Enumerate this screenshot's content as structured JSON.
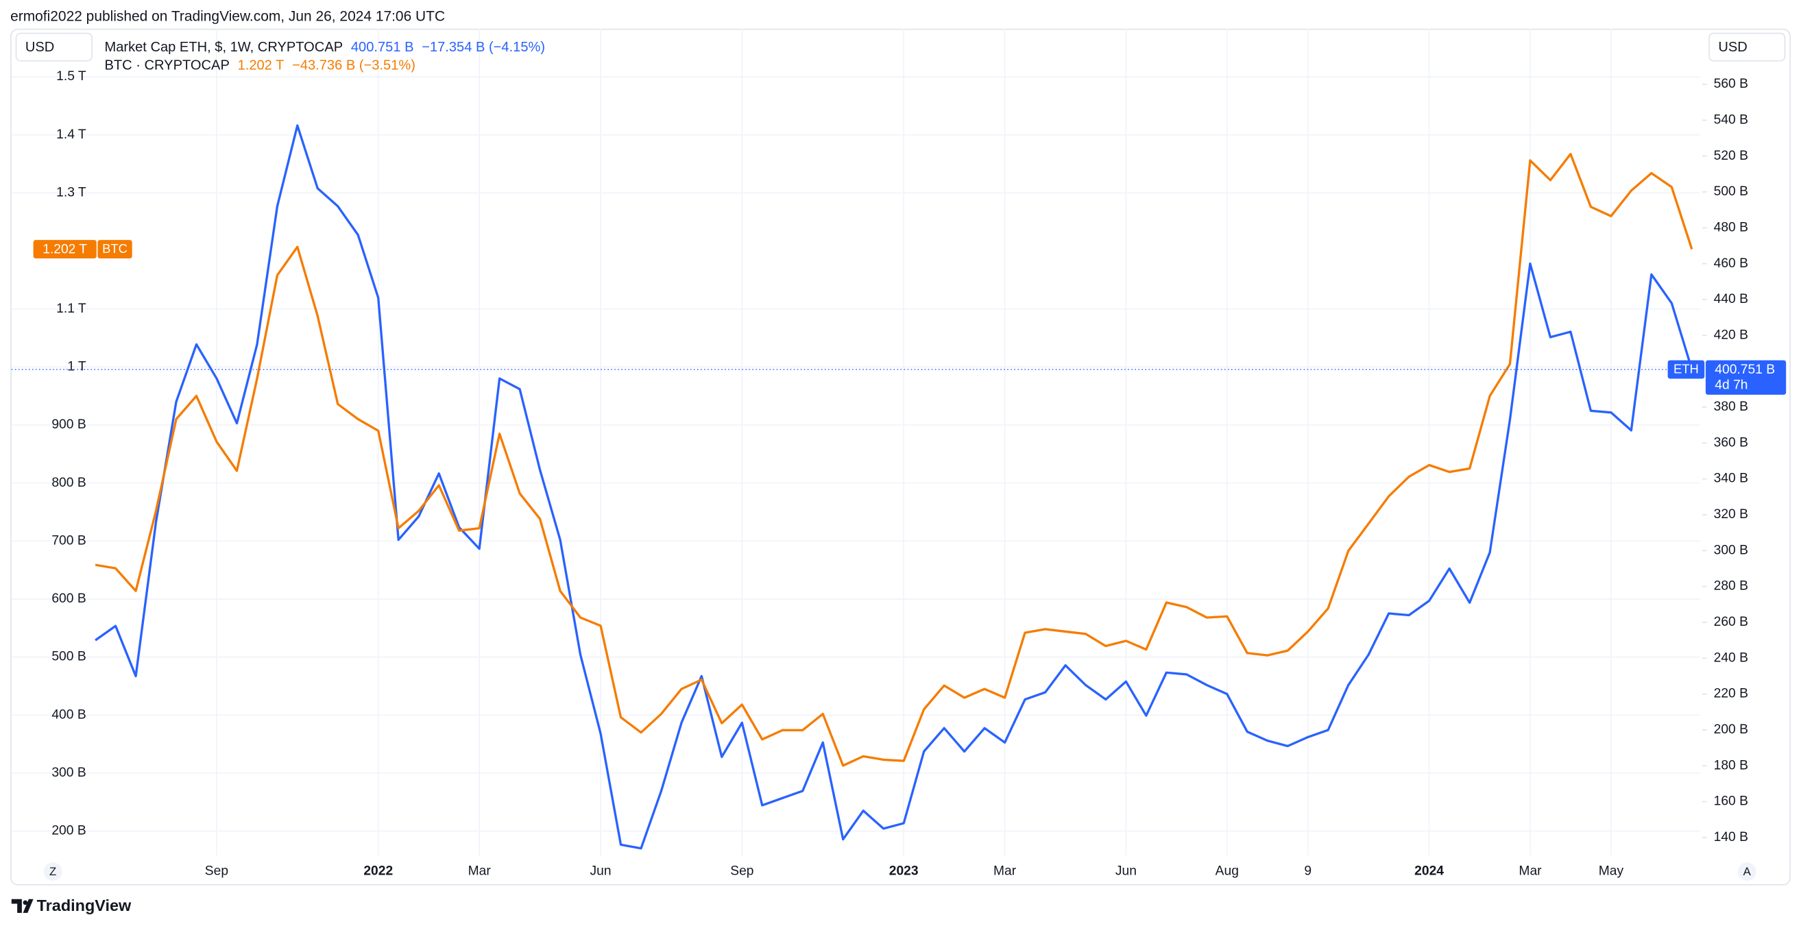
{
  "chart_data": {
    "type": "line",
    "header": "ermofi2022 published on TradingView.com, Jun 26, 2024 17:06 UTC",
    "currency": "USD",
    "footer": "TradingView",
    "scale_buttons": [
      "Z",
      "A"
    ],
    "countdown": "4d 7h",
    "categories": [
      null,
      null,
      null,
      null,
      null,
      null,
      "Sep",
      null,
      null,
      null,
      null,
      null,
      null,
      null,
      "2022",
      null,
      null,
      null,
      null,
      "Mar",
      null,
      null,
      null,
      null,
      null,
      "Jun",
      null,
      null,
      null,
      null,
      null,
      null,
      "Sep",
      null,
      null,
      null,
      null,
      null,
      null,
      null,
      "2023",
      null,
      null,
      null,
      null,
      "Mar",
      null,
      null,
      null,
      null,
      null,
      "Jun",
      null,
      null,
      null,
      null,
      "Aug",
      null,
      null,
      null,
      "9",
      null,
      null,
      null,
      null,
      null,
      "2024",
      null,
      null,
      null,
      null,
      "Mar",
      null,
      null,
      null,
      "May",
      null,
      null,
      null,
      null
    ],
    "bold_categories": [
      "2022",
      "2023",
      "2024"
    ],
    "series": [
      {
        "name": "Market Cap ETH, $, 1W, CRYPTOCAP",
        "symbol": "ETH",
        "last_label": "400.751 B",
        "change_label": "−17.354 B (−4.15%)",
        "color": "#2962ff",
        "axis": "y2",
        "values": [
          250,
          258,
          230,
          316,
          383,
          415,
          396,
          371,
          415,
          492,
          537,
          502,
          492,
          476,
          441,
          306,
          319,
          343,
          313,
          301,
          396,
          390,
          345,
          306,
          242,
          198,
          136,
          134,
          166,
          204,
          230,
          185,
          204,
          158,
          162,
          166,
          193,
          139,
          155,
          145,
          148,
          188,
          201,
          188,
          201,
          193,
          217,
          221,
          236,
          225,
          217,
          227,
          208,
          232,
          231,
          225,
          220,
          199,
          194,
          191,
          196,
          200,
          225,
          242,
          265,
          264,
          272,
          290,
          271,
          299,
          373,
          460,
          419,
          422,
          378,
          377,
          367,
          454,
          438,
          401
        ]
      },
      {
        "name": "BTC · CRYPTOCAP",
        "symbol": "BTC",
        "last_label": "1.202 T",
        "change_label": "−43.736 B (−3.51%)",
        "color": "#f57c00",
        "axis": "y",
        "values": [
          659,
          653,
          614,
          752,
          910,
          950,
          871,
          821,
          980,
          1158,
          1207,
          1088,
          936,
          910,
          890,
          722,
          752,
          796,
          718,
          722,
          885,
          782,
          738,
          614,
          568,
          554,
          396,
          370,
          402,
          445,
          461,
          386,
          418,
          358,
          374,
          374,
          402,
          313,
          329,
          323,
          321,
          410,
          451,
          430,
          445,
          430,
          542,
          548,
          544,
          540,
          519,
          528,
          513,
          594,
          586,
          568,
          570,
          507,
          503,
          511,
          544,
          584,
          683,
          730,
          777,
          811,
          831,
          819,
          825,
          950,
          1005,
          1356,
          1322,
          1367,
          1276,
          1260,
          1304,
          1334,
          1310,
          1203
        ]
      }
    ],
    "ylim": [
      158,
      1583
    ],
    "yticks": [
      {
        "value": 1500,
        "label": "1.5 T"
      },
      {
        "value": 1400,
        "label": "1.4 T"
      },
      {
        "value": 1300,
        "label": "1.3 T"
      },
      {
        "value": 1100,
        "label": "1.1 T"
      },
      {
        "value": 1000,
        "label": "1 T"
      },
      {
        "value": 900,
        "label": "900 B"
      },
      {
        "value": 800,
        "label": "800 B"
      },
      {
        "value": 700,
        "label": "700 B"
      },
      {
        "value": 600,
        "label": "600 B"
      },
      {
        "value": 500,
        "label": "500 B"
      },
      {
        "value": 400,
        "label": "400 B"
      },
      {
        "value": 300,
        "label": "300 B"
      },
      {
        "value": 200,
        "label": "200 B"
      }
    ],
    "y2lim": [
      130,
      591
    ],
    "y2ticks": [
      {
        "value": 560,
        "label": "560 B"
      },
      {
        "value": 540,
        "label": "540 B"
      },
      {
        "value": 520,
        "label": "520 B"
      },
      {
        "value": 500,
        "label": "500 B"
      },
      {
        "value": 480,
        "label": "480 B"
      },
      {
        "value": 460,
        "label": "460 B"
      },
      {
        "value": 440,
        "label": "440 B"
      },
      {
        "value": 420,
        "label": "420 B"
      },
      {
        "value": 380,
        "label": "380 B"
      },
      {
        "value": 360,
        "label": "360 B"
      },
      {
        "value": 340,
        "label": "340 B"
      },
      {
        "value": 320,
        "label": "320 B"
      },
      {
        "value": 300,
        "label": "300 B"
      },
      {
        "value": 280,
        "label": "280 B"
      },
      {
        "value": 260,
        "label": "260 B"
      },
      {
        "value": 240,
        "label": "240 B"
      },
      {
        "value": 220,
        "label": "220 B"
      },
      {
        "value": 200,
        "label": "200 B"
      },
      {
        "value": 180,
        "label": "180 B"
      },
      {
        "value": 160,
        "label": "160 B"
      },
      {
        "value": 140,
        "label": "140 B"
      }
    ],
    "grid": true
  }
}
